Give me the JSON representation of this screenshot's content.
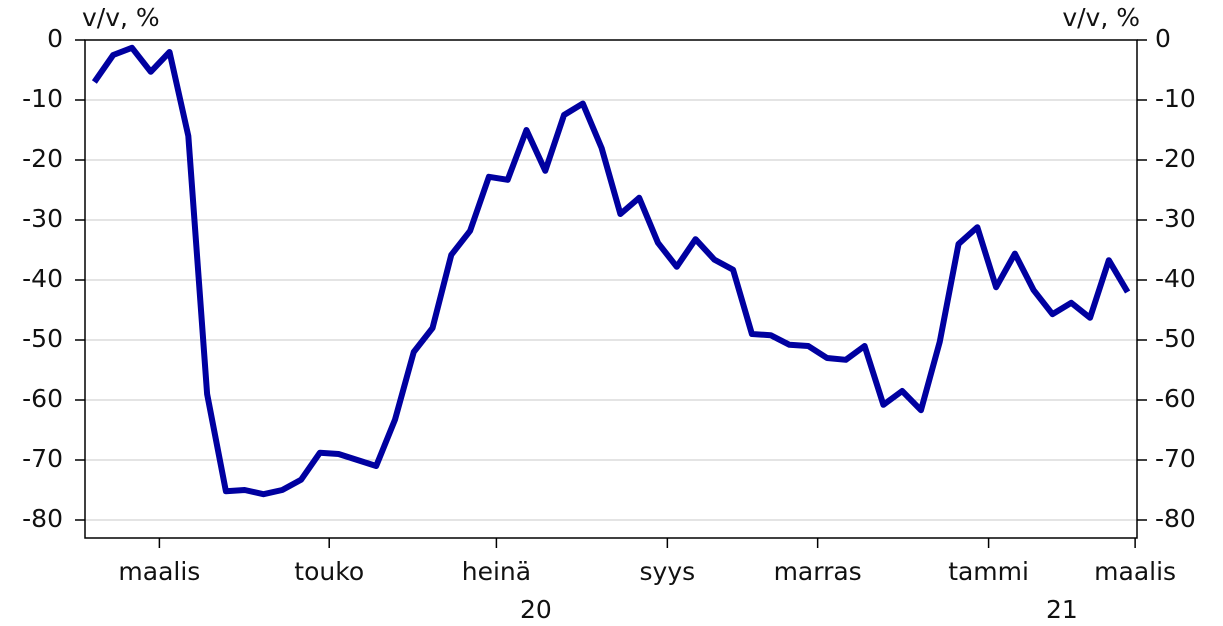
{
  "chart_data": {
    "type": "line",
    "y_label": "v/v, %",
    "y2_label": "v/v, %",
    "x": [
      0,
      1,
      2,
      3,
      4,
      5,
      6,
      7,
      8,
      9,
      10,
      11,
      12,
      13,
      14,
      15,
      16,
      17,
      18,
      19,
      20,
      21,
      22,
      23,
      24,
      25,
      26,
      27,
      28,
      29,
      30,
      31,
      32,
      33,
      34,
      35,
      36,
      37,
      38,
      39,
      40,
      41,
      42,
      43,
      44,
      45,
      46,
      47,
      48,
      49,
      50,
      51,
      52,
      53,
      54,
      55
    ],
    "series": [
      {
        "name": "v/v",
        "color": "#0000a0",
        "values": [
          -7,
          -2.5,
          -1.3,
          -5.3,
          -2,
          -16,
          -59,
          -75.2,
          -75,
          -75.7,
          -75,
          -73.3,
          -68.8,
          -69,
          -70,
          -71,
          -63.3,
          -52,
          -48,
          -35.8,
          -31.8,
          -22.8,
          -23.3,
          -15,
          -21.8,
          -12.5,
          -10.6,
          -18,
          -29,
          -26.3,
          -33.8,
          -37.8,
          -33.2,
          -36.6,
          -38.3,
          -49,
          -49.2,
          -50.8,
          -51,
          -53,
          -53.3,
          -51,
          -60.8,
          -58.5,
          -61.7,
          -50.3,
          -34,
          -31.2,
          -41.2,
          -35.6,
          -41.7,
          -45.7,
          -43.8,
          -46.3,
          -36.7,
          -42
        ]
      }
    ],
    "xlim": [
      -0.5,
      55.5
    ],
    "xticks": [
      {
        "value": 3.46,
        "label": "maalis"
      },
      {
        "value": 12.5,
        "label": "touko"
      },
      {
        "value": 21.4,
        "label": "heinä"
      },
      {
        "value": 30.5,
        "label": "syys"
      },
      {
        "value": 38.5,
        "label": "marras"
      },
      {
        "value": 47.6,
        "label": "tammi"
      },
      {
        "value": 55.4,
        "label": "maalis"
      }
    ],
    "year_labels": [
      {
        "value": 23.5,
        "label": "20"
      },
      {
        "value": 51.5,
        "label": "21"
      }
    ],
    "ylim": [
      -83,
      0
    ],
    "yticks": [
      0,
      -10,
      -20,
      -30,
      -40,
      -50,
      -60,
      -70,
      -80
    ],
    "y2lim": [
      -83,
      0
    ],
    "y2ticks": [
      0,
      -10,
      -20,
      -30,
      -40,
      -50,
      -60,
      -70,
      -80
    ],
    "grid": true
  }
}
